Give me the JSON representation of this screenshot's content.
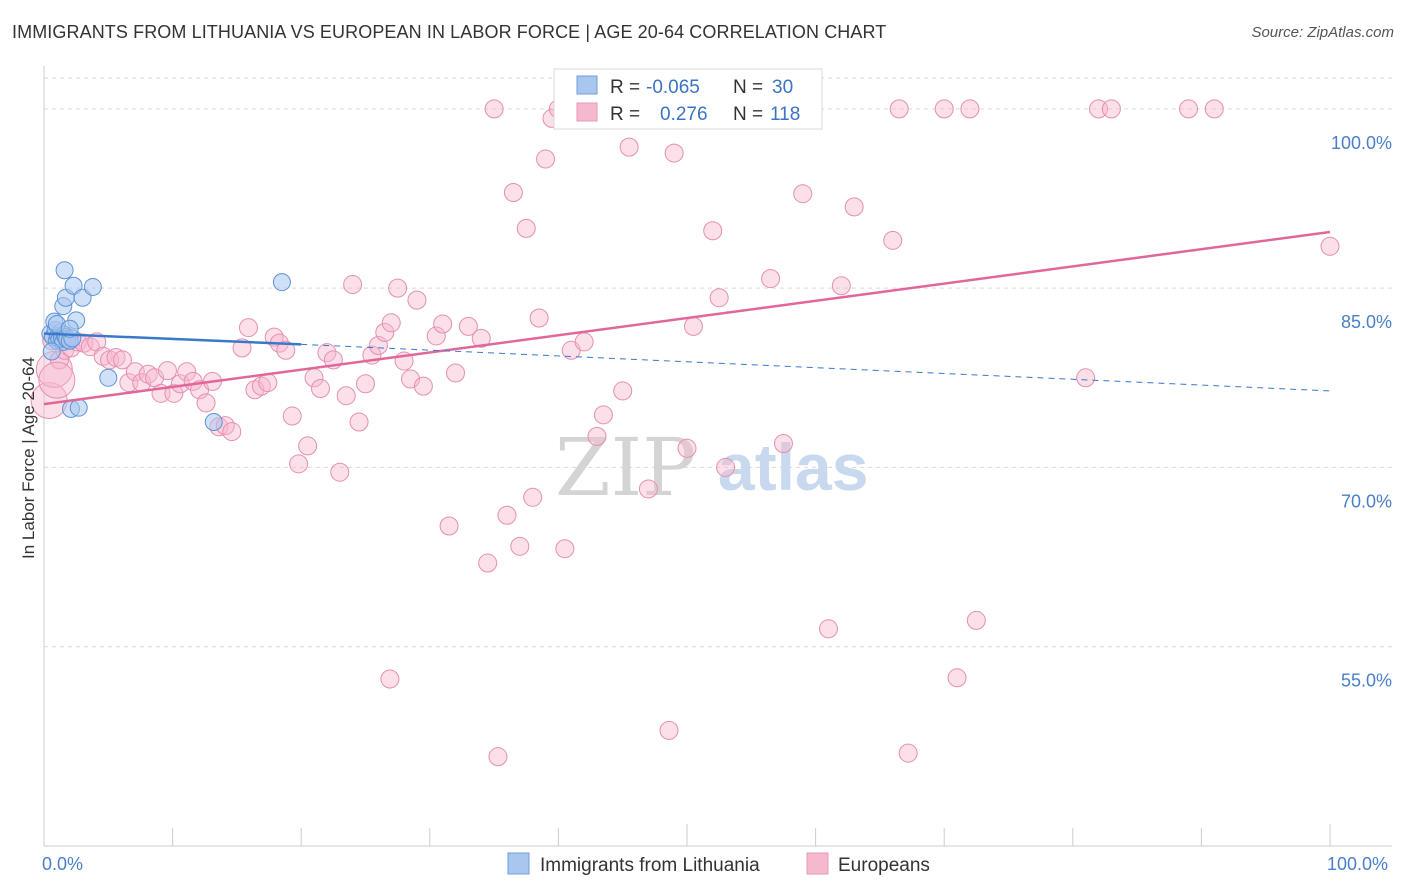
{
  "header": {
    "title": "IMMIGRANTS FROM LITHUANIA VS EUROPEAN IN LABOR FORCE | AGE 20-64 CORRELATION CHART",
    "source": "Source: ZipAtlas.com"
  },
  "colors": {
    "blue": "#3a78c9",
    "blue_fill": "#a9c6ef",
    "pink": "#e0679a",
    "pink_fill": "#f6b8cf",
    "grid": "#d9d9d9",
    "tick": "#4a7fc8"
  },
  "chart_data": {
    "type": "scatter",
    "title": "IMMIGRANTS FROM LITHUANIA VS EUROPEAN IN LABOR FORCE | AGE 20-64 CORRELATION CHART",
    "xlabel": "",
    "ylabel": "In Labor Force | Age 20-64",
    "xlim": [
      0,
      100
    ],
    "ylim": [
      40,
      103
    ],
    "x_tick_labels": [
      "0.0%",
      "100.0%"
    ],
    "y_ticks": [
      {
        "value": 55,
        "label": "55.0%"
      },
      {
        "value": 70,
        "label": "70.0%"
      },
      {
        "value": 85,
        "label": "85.0%"
      },
      {
        "value": 100,
        "label": "100.0%"
      }
    ],
    "grid": true,
    "legend_stats": [
      {
        "r_label": "R =",
        "r_value": "-0.065",
        "n_label": "N =",
        "n_value": "30"
      },
      {
        "r_label": "R =",
        "r_value": "0.276",
        "n_label": "N =",
        "n_value": "118"
      }
    ],
    "series": [
      {
        "name": "Immigrants from Lithuania",
        "color": "#3a78c9",
        "trend": {
          "x0": 0,
          "y0": 81.2,
          "x1": 20,
          "y1": 80.3,
          "dash_to_x": 100,
          "dash_to_y": 76.4
        },
        "points": [
          [
            0.5,
            81.2
          ],
          [
            0.7,
            80.9
          ],
          [
            0.9,
            81.5
          ],
          [
            1.0,
            80.6
          ],
          [
            1.1,
            81.0
          ],
          [
            1.2,
            80.7
          ],
          [
            1.3,
            81.3
          ],
          [
            1.4,
            80.8
          ],
          [
            1.5,
            80.5
          ],
          [
            1.6,
            81.1
          ],
          [
            1.7,
            80.9
          ],
          [
            1.8,
            80.7
          ],
          [
            2.0,
            80.6
          ],
          [
            2.2,
            80.8
          ],
          [
            0.6,
            79.7
          ],
          [
            0.8,
            82.2
          ],
          [
            1.0,
            82.0
          ],
          [
            1.5,
            83.5
          ],
          [
            1.7,
            84.2
          ],
          [
            2.3,
            85.2
          ],
          [
            1.6,
            86.5
          ],
          [
            2.5,
            82.3
          ],
          [
            2.0,
            81.6
          ],
          [
            3.0,
            84.2
          ],
          [
            3.8,
            85.1
          ],
          [
            2.1,
            74.9
          ],
          [
            2.7,
            75.0
          ],
          [
            5.0,
            77.5
          ],
          [
            13.2,
            73.8
          ],
          [
            18.5,
            85.5
          ]
        ]
      },
      {
        "name": "Europeans",
        "color": "#e0679a",
        "trend": {
          "x0": 0,
          "y0": 75.3,
          "x1": 100,
          "y1": 89.7
        },
        "points": [
          [
            0.4,
            75.6
          ],
          [
            0.8,
            78.2
          ],
          [
            1.2,
            79.0
          ],
          [
            1.6,
            79.8
          ],
          [
            2.1,
            80.0
          ],
          [
            2.6,
            80.5
          ],
          [
            3.1,
            80.4
          ],
          [
            3.6,
            80.1
          ],
          [
            4.1,
            80.5
          ],
          [
            4.6,
            79.3
          ],
          [
            5.1,
            79.0
          ],
          [
            5.6,
            79.2
          ],
          [
            6.1,
            79.0
          ],
          [
            6.6,
            77.1
          ],
          [
            7.1,
            78.0
          ],
          [
            7.6,
            77.1
          ],
          [
            8.1,
            77.8
          ],
          [
            8.6,
            77.5
          ],
          [
            9.1,
            76.2
          ],
          [
            9.6,
            78.1
          ],
          [
            10.1,
            76.2
          ],
          [
            10.6,
            77.0
          ],
          [
            11.1,
            78.0
          ],
          [
            11.6,
            77.2
          ],
          [
            12.1,
            76.5
          ],
          [
            12.6,
            75.4
          ],
          [
            13.1,
            77.2
          ],
          [
            13.6,
            73.4
          ],
          [
            14.1,
            73.5
          ],
          [
            14.6,
            73.0
          ],
          [
            15.4,
            80.0
          ],
          [
            15.9,
            81.7
          ],
          [
            16.4,
            76.5
          ],
          [
            16.9,
            76.8
          ],
          [
            17.4,
            77.1
          ],
          [
            17.9,
            80.9
          ],
          [
            18.3,
            80.4
          ],
          [
            18.8,
            79.8
          ],
          [
            19.3,
            74.3
          ],
          [
            19.8,
            70.3
          ],
          [
            20.5,
            71.8
          ],
          [
            21.0,
            77.5
          ],
          [
            21.5,
            76.6
          ],
          [
            22.0,
            79.6
          ],
          [
            22.5,
            79.0
          ],
          [
            23.0,
            69.6
          ],
          [
            23.5,
            76.0
          ],
          [
            24.0,
            85.3
          ],
          [
            24.5,
            73.8
          ],
          [
            25.0,
            77.0
          ],
          [
            25.5,
            79.4
          ],
          [
            26.0,
            80.2
          ],
          [
            26.5,
            81.3
          ],
          [
            27.0,
            82.1
          ],
          [
            27.5,
            85.0
          ],
          [
            28.0,
            78.9
          ],
          [
            28.5,
            77.4
          ],
          [
            29.0,
            84.0
          ],
          [
            29.5,
            76.8
          ],
          [
            30.5,
            81.0
          ],
          [
            31.0,
            82.0
          ],
          [
            31.5,
            65.1
          ],
          [
            32.0,
            77.9
          ],
          [
            33.0,
            81.8
          ],
          [
            34.0,
            80.8
          ],
          [
            34.5,
            62.0
          ],
          [
            35.0,
            100.0
          ],
          [
            36.0,
            66.0
          ],
          [
            36.5,
            93.0
          ],
          [
            37.0,
            63.4
          ],
          [
            37.5,
            90.0
          ],
          [
            38.0,
            67.5
          ],
          [
            38.5,
            82.5
          ],
          [
            39.0,
            95.8
          ],
          [
            39.5,
            99.2
          ],
          [
            40.0,
            100.0
          ],
          [
            40.5,
            63.2
          ],
          [
            41.0,
            79.8
          ],
          [
            42.0,
            80.5
          ],
          [
            43.0,
            72.6
          ],
          [
            43.5,
            74.4
          ],
          [
            44.0,
            100.0
          ],
          [
            45.0,
            76.4
          ],
          [
            45.5,
            96.8
          ],
          [
            46.0,
            100.0
          ],
          [
            47.0,
            68.2
          ],
          [
            48.0,
            100.0
          ],
          [
            49.0,
            96.3
          ],
          [
            50.0,
            71.6
          ],
          [
            50.5,
            81.8
          ],
          [
            52.0,
            89.8
          ],
          [
            52.5,
            84.2
          ],
          [
            53.0,
            70.0
          ],
          [
            55.0,
            100.0
          ],
          [
            56.5,
            85.8
          ],
          [
            57.5,
            72.0
          ],
          [
            59.0,
            92.9
          ],
          [
            61.0,
            56.5
          ],
          [
            62.0,
            85.2
          ],
          [
            63.0,
            91.8
          ],
          [
            66.0,
            89.0
          ],
          [
            66.5,
            100.0
          ],
          [
            70.0,
            100.0
          ],
          [
            71.0,
            52.4
          ],
          [
            72.0,
            100.0
          ],
          [
            72.5,
            57.2
          ],
          [
            81.0,
            77.5
          ],
          [
            82.0,
            100.0
          ],
          [
            83.0,
            100.0
          ],
          [
            89.0,
            100.0
          ],
          [
            91.0,
            100.0
          ],
          [
            100.0,
            88.5
          ],
          [
            26.9,
            52.3
          ],
          [
            35.3,
            45.8
          ],
          [
            48.6,
            48.0
          ],
          [
            67.2,
            46.1
          ],
          [
            0.6,
            80.6
          ],
          [
            1.0,
            77.3
          ]
        ]
      }
    ]
  },
  "bottom_legend": {
    "items": [
      {
        "label": "Immigrants from Lithuania"
      },
      {
        "label": "Europeans"
      }
    ]
  },
  "watermark": {
    "part1": "ZIP",
    "part2": "atlas"
  }
}
